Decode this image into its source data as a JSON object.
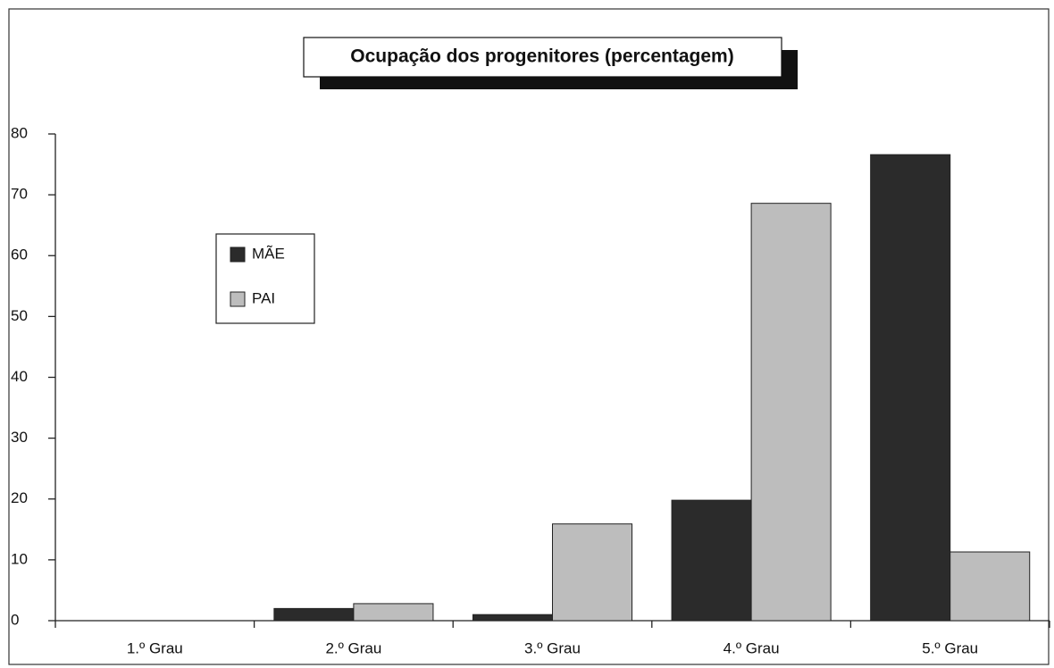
{
  "chart_data": {
    "type": "bar",
    "title": "Ocupação dos progenitores (percentagem)",
    "categories": [
      "1.º Grau",
      "2.º Grau",
      "3.º Grau",
      "4.º Grau",
      "5.º Grau"
    ],
    "series": [
      {
        "name": "MÃE",
        "color": "#2b2b2b",
        "values": [
          0,
          2,
          1,
          19.8,
          76.6
        ]
      },
      {
        "name": "PAI",
        "color": "#bdbdbd",
        "values": [
          0,
          2.8,
          15.9,
          68.6,
          11.3
        ]
      }
    ],
    "ylim": [
      0,
      80
    ],
    "yticks": [
      0,
      10,
      20,
      30,
      40,
      50,
      60,
      70,
      80
    ],
    "grid": false,
    "legend": "upper left"
  }
}
